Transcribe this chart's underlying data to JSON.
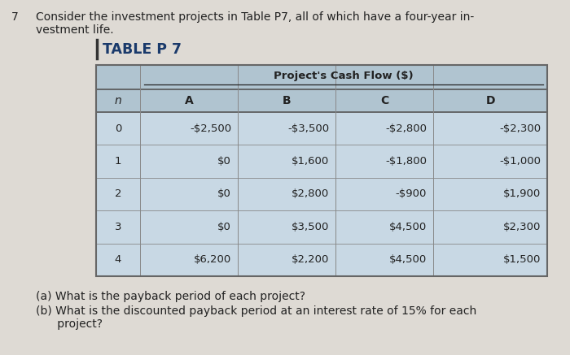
{
  "problem_number": "7",
  "problem_text_line1": "Consider the investment projects in Table P7, all of which have a four-year in-",
  "problem_text_line2": "vestment life.",
  "table_title": "TABLE P 7",
  "col_header_span": "Project's Cash Flow ($)",
  "col_headers": [
    "n",
    "A",
    "B",
    "C",
    "D"
  ],
  "rows": [
    [
      "0",
      "-$2,500",
      "-$3,500",
      "-$2,800",
      "-$2,300"
    ],
    [
      "1",
      "$0",
      "$1,600",
      "-$1,800",
      "-$1,000"
    ],
    [
      "2",
      "$0",
      "$2,800",
      "-$900",
      "$1,900"
    ],
    [
      "3",
      "$0",
      "$3,500",
      "$4,500",
      "$2,300"
    ],
    [
      "4",
      "$6,200",
      "$2,200",
      "$4,500",
      "$1,500"
    ]
  ],
  "question_a": "(a) What is the payback period of each project?",
  "question_b": "(b) What is the discounted payback period at an interest rate of 15% for each",
  "question_b2": "      project?",
  "bg_color": "#c8d8e4",
  "header_row_bg": "#b0c4d0",
  "table_border_color": "#666666",
  "text_color": "#222222",
  "page_bg": "#dedad4"
}
